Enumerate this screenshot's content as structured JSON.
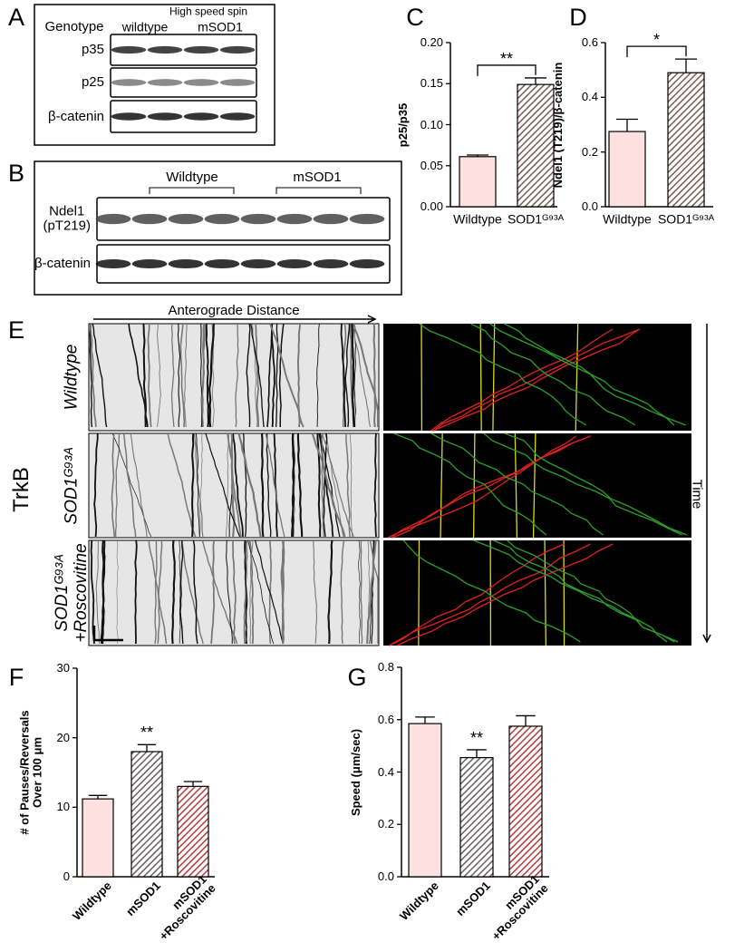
{
  "panel_labels": [
    "A",
    "B",
    "C",
    "D",
    "E",
    "F",
    "G"
  ],
  "blot_a": {
    "genotype_label": "Genotype",
    "condition": "High speed spin",
    "lanes": [
      "wildtype",
      "mSOD1"
    ],
    "rows": [
      "p35",
      "p25",
      "β-catenin"
    ]
  },
  "blot_b": {
    "lanes": [
      "Wildtype",
      "mSOD1"
    ],
    "rows": [
      "Ndel1\n(pT219)",
      "β-catenin"
    ]
  },
  "kymograph": {
    "x_label": "Anterograde Distance",
    "time_label": "Time",
    "marker": "TrkB",
    "rows": [
      "Wildtype",
      "SOD1ᴳ⁹³ᴬ",
      "SOD1ᴳ⁹³ᴬ\n+Roscovitine"
    ]
  },
  "chart_data": [
    {
      "type": "bar",
      "y_label": "p25/p35",
      "categories": [
        "Wildtype",
        "SOD1ᴳ⁹³ᴬ"
      ],
      "values": [
        0.061,
        0.149
      ],
      "errors": [
        0.002,
        0.008
      ],
      "colors": [
        "#fde1e1",
        "#7a5a52"
      ],
      "hatch": [
        false,
        true
      ],
      "ylim": [
        0,
        0.2
      ],
      "yticks": [
        {
          "value": 0,
          "label": "0.00"
        },
        {
          "value": 0.05,
          "label": "0.05"
        },
        {
          "value": 0.1,
          "label": "0.10"
        },
        {
          "value": 0.15,
          "label": "0.15"
        },
        {
          "value": 0.2,
          "label": "0.20"
        }
      ],
      "annotation": "**"
    },
    {
      "type": "bar",
      "y_label": "Ndel1 (T219)/β-catenin",
      "categories": [
        "Wildtype",
        "SOD1ᴳ⁹³ᴬ"
      ],
      "values": [
        0.275,
        0.49
      ],
      "errors": [
        0.045,
        0.05
      ],
      "colors": [
        "#fde1e1",
        "#7a5a52"
      ],
      "hatch": [
        false,
        true
      ],
      "ylim": [
        0,
        0.6
      ],
      "yticks": [
        {
          "value": 0,
          "label": "0.0"
        },
        0.2,
        0.4,
        0.6
      ],
      "annotation": "*"
    },
    {
      "type": "bar",
      "y_label": "# of Pauses/Reversals\nOver 100 μm",
      "categories": [
        "Wildtype",
        "mSOD1",
        "mSOD1\n+Roscovitine"
      ],
      "values": [
        11.2,
        18,
        13
      ],
      "errors": [
        0.5,
        1,
        0.7
      ],
      "colors": [
        "#fde1e1",
        "#6b6060",
        "#b83a3a"
      ],
      "hatch": [
        false,
        true,
        true
      ],
      "ylim": [
        0,
        30
      ],
      "yticks": [
        0,
        10,
        20,
        30
      ],
      "annotation": "**"
    },
    {
      "type": "bar",
      "y_label": "Speed (μm/sec)",
      "categories": [
        "Wildtype",
        "mSOD1",
        "mSOD1\n+Roscovitine"
      ],
      "values": [
        0.585,
        0.455,
        0.575
      ],
      "errors": [
        0.025,
        0.03,
        0.04
      ],
      "colors": [
        "#fde1e1",
        "#6b6060",
        "#b83a3a"
      ],
      "hatch": [
        false,
        true,
        true
      ],
      "ylim": [
        0,
        0.8
      ],
      "yticks": [
        {
          "value": 0,
          "label": "0.0"
        },
        0.2,
        0.4,
        0.6,
        0.8
      ],
      "annotation": "**"
    }
  ]
}
